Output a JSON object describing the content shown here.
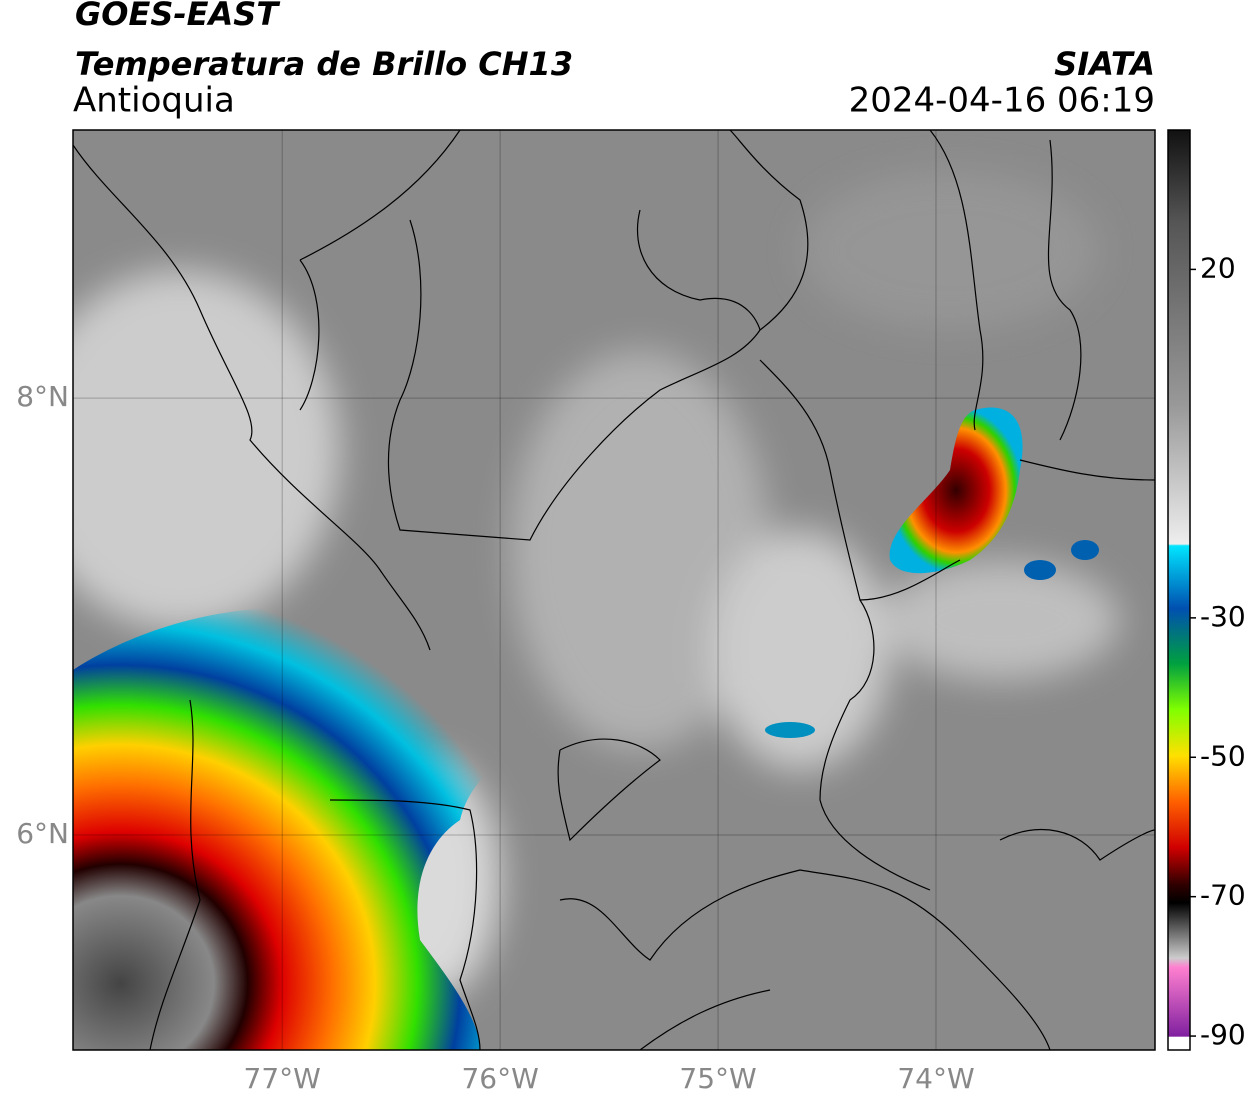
{
  "header": {
    "title": "GOES-EAST",
    "subtitle": "Temperatura de Brillo CH13",
    "region": "Antioquia",
    "source": "SIATA",
    "datetime": "2024-04-16 06:19"
  },
  "map": {
    "lonlim": [
      -77.96,
      -72.995
    ],
    "latlim": [
      5.016,
      9.227
    ],
    "lat_ticks": [
      {
        "value": 8,
        "label": "8°N"
      },
      {
        "value": 6,
        "label": "6°N"
      }
    ],
    "lon_ticks": [
      {
        "value": -77,
        "label": "77°W"
      },
      {
        "value": -76,
        "label": "76°W"
      },
      {
        "value": -75,
        "label": "75°W"
      },
      {
        "value": -74,
        "label": "74°W"
      }
    ],
    "grid": true
  },
  "colorbar": {
    "lim": [
      -92,
      40
    ],
    "ticks": [
      20,
      -30,
      -50,
      -70,
      -90
    ]
  }
}
